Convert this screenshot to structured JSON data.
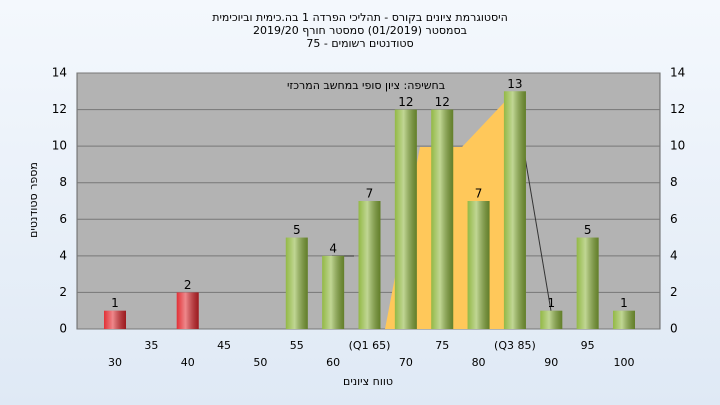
{
  "chart_data": {
    "type": "bar",
    "title": [
      "היסטוגרמת ציונים בקורס - תהליכי הפרדה 1 בה.כימית וביוכימית",
      "בסמסטר (01/2019)  סמסטר חורף 2019/20",
      "סטודנטים רשומים - 75"
    ],
    "annotation": "בחשיפה: ציון סופי במחשב המרכזי",
    "x_label": "טווח ציונים",
    "y_label": "מספר סטודנטים",
    "categories": [
      "30",
      "35",
      "40",
      "45",
      "50",
      "55",
      "60",
      "(Q1 65)",
      "70",
      "75",
      "80",
      "(Q3 85)",
      "90",
      "95",
      "100"
    ],
    "values": [
      1,
      0,
      2,
      0,
      0,
      5,
      4,
      7,
      12,
      12,
      7,
      13,
      1,
      5,
      1
    ],
    "colors": [
      "#e0262c",
      "#8db53c",
      "#e0262c",
      "#8db53c",
      "#8db53c",
      "#8db53c",
      "#8db53c",
      "#8db53c",
      "#8db53c",
      "#8db53c",
      "#8db53c",
      "#8db53c",
      "#8db53c",
      "#8db53c",
      "#8db53c"
    ],
    "ylim": [
      0,
      14
    ],
    "yticks": [
      0,
      2,
      4,
      6,
      8,
      10,
      12,
      14
    ],
    "grid": true
  }
}
